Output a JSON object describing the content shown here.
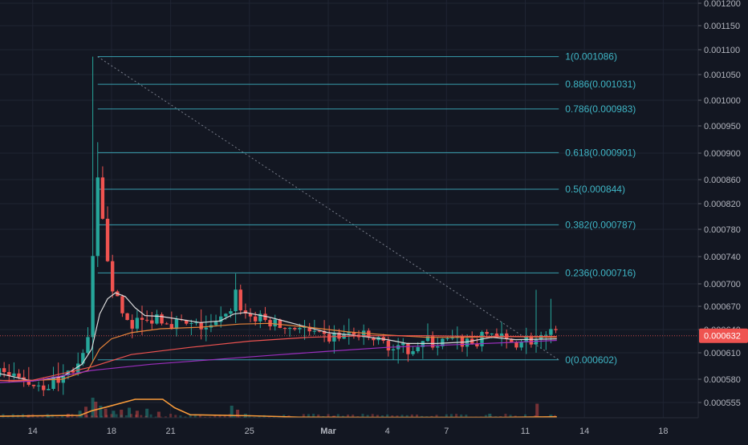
{
  "chart_data": {
    "type": "candlestick",
    "title": "",
    "symbol": "",
    "yaxis": {
      "position": "right",
      "ylim": [
        0.00052,
        0.0012
      ],
      "tick_labels": [
        "0.001200",
        "0.001150",
        "0.001100",
        "0.001050",
        "0.001000",
        "0.000950",
        "0.000900",
        "0.000860",
        "0.000820",
        "0.000780",
        "0.000740",
        "0.000700",
        "0.000670",
        "0.000640",
        "0.000610",
        "0.000580",
        "0.000555"
      ],
      "tick_values": [
        0.0012,
        0.00115,
        0.0011,
        0.00105,
        0.001,
        0.00095,
        0.0009,
        0.00086,
        0.00082,
        0.00078,
        0.00074,
        0.0007,
        0.00067,
        0.00064,
        0.00061,
        0.00058,
        0.000555
      ],
      "last_price_label": "0.000632",
      "last_price": 0.000632
    },
    "xaxis": {
      "tick_labels": [
        "14",
        "18",
        "21",
        "25",
        "Mar",
        "4",
        "7",
        "11",
        "14",
        "18"
      ],
      "tick_days": [
        -15,
        -11,
        -8,
        -4,
        0,
        3,
        6,
        10,
        13,
        17
      ]
    },
    "fibonacci": {
      "levels": [
        {
          "label": "1(0.001086)",
          "value": 0.001086
        },
        {
          "label": "0.886(0.001031)",
          "value": 0.001031
        },
        {
          "label": "0.786(0.000983)",
          "value": 0.000983
        },
        {
          "label": "0.618(0.000901)",
          "value": 0.000901
        },
        {
          "label": "0.5(0.000844)",
          "value": 0.000844
        },
        {
          "label": "0.382(0.000787)",
          "value": 0.000787
        },
        {
          "label": "0.236(0.000716)",
          "value": 0.000716
        },
        {
          "label": "0(0.000602)",
          "value": 0.000602
        }
      ],
      "start_day": -11.7,
      "end_day": 11.7
    },
    "price_path": [
      [
        -19.2,
        0.000592
      ],
      [
        -18.5,
        0.000588
      ],
      [
        -17.6,
        0.00059
      ],
      [
        -16.8,
        0.000585
      ],
      [
        -16.0,
        0.00058
      ],
      [
        -15.2,
        0.000577
      ],
      [
        -14.4,
        0.000574
      ],
      [
        -13.6,
        0.00058
      ],
      [
        -13.0,
        0.000592
      ],
      [
        -12.5,
        0.000598
      ],
      [
        -12.2,
        0.000625
      ],
      [
        -12.0,
        0.00065
      ],
      [
        -11.85,
        0.0009
      ],
      [
        -11.75,
        0.00087
      ],
      [
        -11.6,
        0.00083
      ],
      [
        -11.45,
        0.00079
      ],
      [
        -11.3,
        0.00076
      ],
      [
        -11.1,
        0.00072
      ],
      [
        -10.9,
        0.00069
      ],
      [
        -10.6,
        0.000668
      ],
      [
        -10.3,
        0.000655
      ],
      [
        -10.0,
        0.000648
      ],
      [
        -9.6,
        0.000652
      ],
      [
        -9.2,
        0.000648
      ],
      [
        -8.8,
        0.00066
      ],
      [
        -8.4,
        0.000655
      ],
      [
        -8.0,
        0.00065
      ],
      [
        -7.6,
        0.000648
      ],
      [
        -7.2,
        0.000645
      ],
      [
        -6.8,
        0.000643
      ],
      [
        -6.4,
        0.000645
      ],
      [
        -6.0,
        0.00064
      ],
      [
        -5.6,
        0.000648
      ],
      [
        -5.2,
        0.000655
      ],
      [
        -4.9,
        0.000672
      ],
      [
        -4.7,
        0.00069
      ],
      [
        -4.5,
        0.000672
      ],
      [
        -4.2,
        0.00066
      ],
      [
        -3.8,
        0.000655
      ],
      [
        -3.4,
        0.000652
      ],
      [
        -3.0,
        0.00065
      ],
      [
        -2.6,
        0.000645
      ],
      [
        -2.2,
        0.000642
      ],
      [
        -1.8,
        0.000645
      ],
      [
        -1.4,
        0.000643
      ],
      [
        -1.0,
        0.000635
      ],
      [
        -0.6,
        0.00063
      ],
      [
        -0.2,
        0.000628
      ],
      [
        0.2,
        0.00063
      ],
      [
        0.6,
        0.000632
      ],
      [
        1.0,
        0.000633
      ],
      [
        1.4,
        0.000632
      ],
      [
        1.8,
        0.00063
      ],
      [
        2.2,
        0.000628
      ],
      [
        2.6,
        0.000625
      ],
      [
        3.0,
        0.000622
      ],
      [
        3.4,
        0.000612
      ],
      [
        3.8,
        0.000614
      ],
      [
        4.2,
        0.000618
      ],
      [
        4.6,
        0.000622
      ],
      [
        5.0,
        0.000624
      ],
      [
        5.4,
        0.000622
      ],
      [
        5.8,
        0.000623
      ],
      [
        6.2,
        0.000625
      ],
      [
        6.6,
        0.000623
      ],
      [
        7.0,
        0.000625
      ],
      [
        7.4,
        0.000622
      ],
      [
        7.8,
        0.000628
      ],
      [
        8.2,
        0.000638
      ],
      [
        8.6,
        0.00063
      ],
      [
        9.0,
        0.000625
      ],
      [
        9.4,
        0.000624
      ],
      [
        9.8,
        0.000626
      ],
      [
        10.2,
        0.000627
      ],
      [
        10.6,
        0.000625
      ],
      [
        11.0,
        0.000628
      ],
      [
        11.3,
        0.000633
      ],
      [
        11.6,
        0.000632
      ]
    ],
    "indicators": [
      {
        "color": "#d8d8d8",
        "points": [
          [
            -19.2,
            0.000592
          ],
          [
            -17.0,
            0.000588
          ],
          [
            -15.0,
            0.000578
          ],
          [
            -13.5,
            0.000583
          ],
          [
            -12.5,
            0.000597
          ],
          [
            -12.0,
            0.000615
          ],
          [
            -11.6,
            0.00066
          ],
          [
            -11.2,
            0.00068
          ],
          [
            -10.8,
            0.000688
          ],
          [
            -10.3,
            0.000683
          ],
          [
            -9.8,
            0.000668
          ],
          [
            -9.3,
            0.000658
          ],
          [
            -8.5,
            0.000657
          ],
          [
            -7.5,
            0.000653
          ],
          [
            -6.5,
            0.000649
          ],
          [
            -5.5,
            0.000651
          ],
          [
            -4.8,
            0.00066
          ],
          [
            -4.2,
            0.000662
          ],
          [
            -3.0,
            0.000656
          ],
          [
            -1.5,
            0.000646
          ],
          [
            0.0,
            0.000636
          ],
          [
            1.5,
            0.000632
          ],
          [
            3.0,
            0.000627
          ],
          [
            4.0,
            0.000622
          ],
          [
            5.5,
            0.000622
          ],
          [
            7.0,
            0.000624
          ],
          [
            8.3,
            0.00063
          ],
          [
            9.5,
            0.000627
          ],
          [
            11.6,
            0.000628
          ]
        ]
      },
      {
        "color": "#e8843a",
        "points": [
          [
            -19.2,
            0.000582
          ],
          [
            -16.0,
            0.000578
          ],
          [
            -13.5,
            0.00058
          ],
          [
            -12.2,
            0.00059
          ],
          [
            -11.6,
            0.000615
          ],
          [
            -11.0,
            0.000628
          ],
          [
            -10.0,
            0.000636
          ],
          [
            -8.5,
            0.000641
          ],
          [
            -6.5,
            0.000643
          ],
          [
            -4.5,
            0.000647
          ],
          [
            -3.0,
            0.000648
          ],
          [
            -1.0,
            0.000643
          ],
          [
            1.0,
            0.000637
          ],
          [
            3.0,
            0.000633
          ],
          [
            5.0,
            0.00063
          ],
          [
            7.0,
            0.00063
          ],
          [
            9.0,
            0.000631
          ],
          [
            11.6,
            0.00063
          ]
        ]
      },
      {
        "color": "#ef5350",
        "points": [
          [
            -19.2,
            0.000578
          ],
          [
            -15.0,
            0.000579
          ],
          [
            -12.0,
            0.000594
          ],
          [
            -10.0,
            0.000608
          ],
          [
            -7.0,
            0.000617
          ],
          [
            -4.0,
            0.000625
          ],
          [
            -1.0,
            0.00063
          ],
          [
            2.0,
            0.000632
          ],
          [
            5.0,
            0.000632
          ],
          [
            8.0,
            0.000631
          ],
          [
            11.6,
            0.000631
          ]
        ]
      },
      {
        "color": "#9b2fbf",
        "points": [
          [
            -19.2,
            0.000574
          ],
          [
            -15.0,
            0.000578
          ],
          [
            -12.0,
            0.00059
          ],
          [
            -9.0,
            0.000597
          ],
          [
            -6.0,
            0.000602
          ],
          [
            -3.0,
            0.000607
          ],
          [
            0.0,
            0.000612
          ],
          [
            3.0,
            0.000617
          ],
          [
            6.0,
            0.00062
          ],
          [
            9.0,
            0.000623
          ],
          [
            11.6,
            0.000626
          ]
        ]
      }
    ],
    "volume": {
      "color_up": "#26a69a",
      "color_down": "#ef5350",
      "bars": [
        [
          -15.2,
          0.15
        ],
        [
          -14.2,
          0.1
        ],
        [
          -13.2,
          0.2
        ],
        [
          -12.6,
          0.35
        ],
        [
          -12.3,
          0.55
        ],
        [
          -11.95,
          1.0
        ],
        [
          -11.8,
          0.8
        ],
        [
          -11.55,
          0.6
        ],
        [
          -11.3,
          0.45
        ],
        [
          -10.9,
          0.35
        ],
        [
          -10.5,
          0.4
        ],
        [
          -10.1,
          0.5
        ],
        [
          -9.7,
          0.35
        ],
        [
          -9.2,
          0.45
        ],
        [
          -8.6,
          0.3
        ],
        [
          -4.9,
          0.6
        ],
        [
          -4.6,
          0.4
        ],
        [
          -4.2,
          0.2
        ],
        [
          0.3,
          0.1
        ],
        [
          8.2,
          0.2
        ],
        [
          10.6,
          0.7
        ],
        [
          11.3,
          0.15
        ]
      ],
      "ma": [
        [
          -19.2,
          0.05
        ],
        [
          -12.6,
          0.12
        ],
        [
          -12.0,
          0.35
        ],
        [
          -11.2,
          0.55
        ],
        [
          -9.8,
          0.92
        ],
        [
          -8.4,
          0.92
        ],
        [
          -7.8,
          0.5
        ],
        [
          -7.0,
          0.15
        ],
        [
          -4.0,
          0.1
        ],
        [
          -2.5,
          0.06
        ],
        [
          -1.5,
          0.03
        ],
        [
          2.0,
          0.02
        ],
        [
          6.0,
          0.02
        ],
        [
          9.0,
          0.02
        ],
        [
          11.6,
          0.05
        ]
      ]
    },
    "colors": {
      "background": "#131722",
      "grid": "#1f2433",
      "up": "#26a69a",
      "down": "#ef5350",
      "fib": "#3fb6c6",
      "axis_text": "#b2b5be",
      "price_tag": "#ef5350"
    }
  }
}
